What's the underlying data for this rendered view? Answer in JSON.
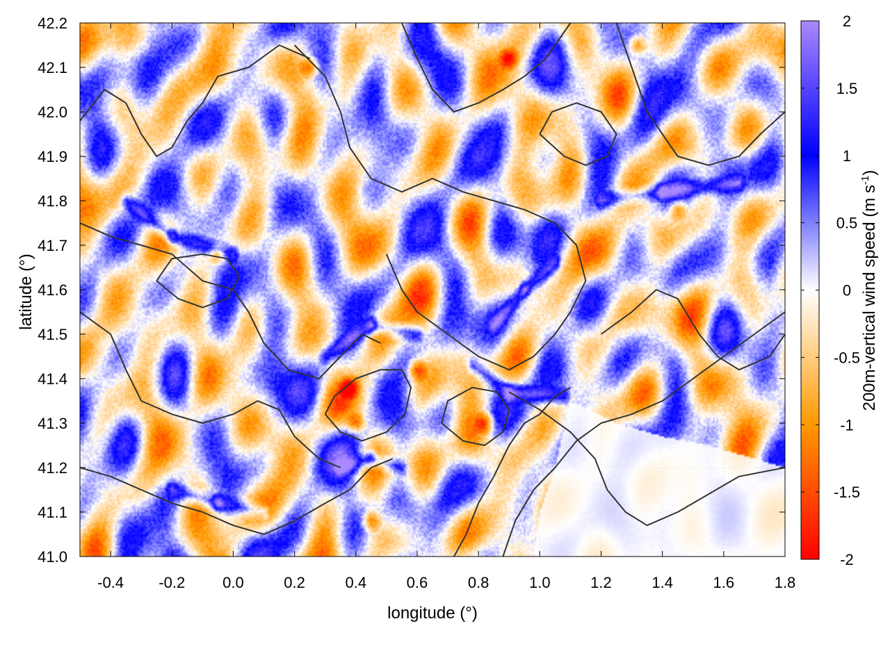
{
  "chart_data": {
    "type": "heatmap",
    "title": "",
    "xlabel": "longitude (°)",
    "ylabel": "latitude (°)",
    "colorbar_label": "200m-vertical wind speed (m s",
    "colorbar_label_sup": "-1",
    "colorbar_label_end": ")",
    "xlim": [
      -0.5,
      1.8
    ],
    "ylim": [
      41.0,
      42.2
    ],
    "xticks": [
      -0.4,
      -0.2,
      0.0,
      0.2,
      0.4,
      0.6,
      0.8,
      1.0,
      1.2,
      1.4,
      1.6,
      1.8
    ],
    "xtick_labels": [
      "-0.4",
      "-0.2",
      "0.0",
      "0.2",
      "0.4",
      "0.6",
      "0.8",
      "1.0",
      "1.2",
      "1.4",
      "1.6",
      "1.8"
    ],
    "yticks": [
      41.0,
      41.1,
      41.2,
      41.3,
      41.4,
      41.5,
      41.6,
      41.7,
      41.8,
      41.9,
      42.0,
      42.1,
      42.2
    ],
    "ytick_labels": [
      "41.0",
      "41.1",
      "41.2",
      "41.3",
      "41.4",
      "41.5",
      "41.6",
      "41.7",
      "41.8",
      "41.9",
      "42.0",
      "42.1",
      "42.2"
    ],
    "colorbar": {
      "range": [
        -2,
        2
      ],
      "ticks": [
        -2,
        -1.5,
        -1,
        -0.5,
        0,
        0.5,
        1,
        1.5,
        2
      ],
      "tick_labels": [
        "-2",
        "-1.5",
        "-1",
        "-0.5",
        "0",
        "0.5",
        "1",
        "1.5",
        "2"
      ],
      "colors": [
        [
          -2.0,
          "#ff0000"
        ],
        [
          -1.0,
          "#ff9900"
        ],
        [
          0.0,
          "#ffffff"
        ],
        [
          1.0,
          "#0000ff"
        ],
        [
          2.0,
          "#aa88ff"
        ]
      ]
    },
    "grid": true,
    "contours": true,
    "contour_color": "#333333",
    "features": {
      "calm_sea_region": [
        [
          1.1,
          41.35
        ],
        [
          1.25,
          41.3
        ],
        [
          1.4,
          41.27
        ],
        [
          1.55,
          41.25
        ],
        [
          1.8,
          41.2
        ],
        [
          1.8,
          41.0
        ],
        [
          0.98,
          41.0
        ],
        [
          1.0,
          41.1
        ],
        [
          1.05,
          41.2
        ]
      ],
      "updraft_bands": [
        [
          [
            -0.35,
            41.8
          ],
          [
            -0.2,
            41.72
          ],
          [
            0.0,
            41.68
          ]
        ],
        [
          [
            0.3,
            41.45
          ],
          [
            0.45,
            41.52
          ],
          [
            0.6,
            41.5
          ]
        ],
        [
          [
            0.85,
            41.52
          ],
          [
            0.95,
            41.6
          ],
          [
            1.05,
            41.66
          ]
        ],
        [
          [
            0.78,
            41.43
          ],
          [
            0.9,
            41.37
          ],
          [
            1.08,
            41.36
          ]
        ],
        [
          [
            1.2,
            41.8
          ],
          [
            1.4,
            41.82
          ],
          [
            1.65,
            41.84
          ]
        ],
        [
          [
            0.35,
            41.2
          ],
          [
            0.45,
            41.22
          ],
          [
            0.55,
            41.2
          ]
        ],
        [
          [
            -0.2,
            41.15
          ],
          [
            -0.05,
            41.12
          ],
          [
            0.1,
            41.1
          ]
        ]
      ],
      "downdraft_spots": [
        [
          0.38,
          41.38
        ],
        [
          0.82,
          41.3
        ],
        [
          0.4,
          41.3
        ],
        [
          0.9,
          42.12
        ],
        [
          1.32,
          42.15
        ],
        [
          0.25,
          42.1
        ],
        [
          0.45,
          41.08
        ],
        [
          -0.05,
          41.68
        ],
        [
          1.45,
          41.78
        ],
        [
          0.6,
          41.42
        ]
      ],
      "contour_lines": [
        [
          [
            -0.5,
            41.98
          ],
          [
            -0.42,
            42.05
          ],
          [
            -0.35,
            42.02
          ],
          [
            -0.3,
            41.95
          ],
          [
            -0.25,
            41.9
          ],
          [
            -0.2,
            41.92
          ],
          [
            -0.15,
            41.98
          ],
          [
            -0.1,
            42.02
          ],
          [
            -0.05,
            42.08
          ],
          [
            0.05,
            42.1
          ],
          [
            0.15,
            42.15
          ],
          [
            0.25,
            42.12
          ]
        ],
        [
          [
            -0.5,
            41.75
          ],
          [
            -0.4,
            41.72
          ],
          [
            -0.3,
            41.7
          ],
          [
            -0.2,
            41.68
          ],
          [
            -0.1,
            41.62
          ],
          [
            0.0,
            41.6
          ],
          [
            0.05,
            41.55
          ],
          [
            0.1,
            41.48
          ],
          [
            0.18,
            41.42
          ],
          [
            0.28,
            41.4
          ],
          [
            0.35,
            41.45
          ],
          [
            0.42,
            41.5
          ],
          [
            0.48,
            41.48
          ]
        ],
        [
          [
            -0.5,
            41.55
          ],
          [
            -0.4,
            41.5
          ],
          [
            -0.35,
            41.42
          ],
          [
            -0.3,
            41.35
          ],
          [
            -0.2,
            41.32
          ],
          [
            -0.1,
            41.3
          ],
          [
            0.0,
            41.32
          ],
          [
            0.08,
            41.35
          ],
          [
            0.15,
            41.33
          ],
          [
            0.2,
            41.27
          ],
          [
            0.28,
            41.22
          ],
          [
            0.35,
            41.2
          ]
        ],
        [
          [
            -0.5,
            41.2
          ],
          [
            -0.4,
            41.18
          ],
          [
            -0.3,
            41.15
          ],
          [
            -0.2,
            41.12
          ],
          [
            -0.1,
            41.1
          ],
          [
            0.0,
            41.07
          ],
          [
            0.1,
            41.05
          ],
          [
            0.2,
            41.08
          ],
          [
            0.3,
            41.12
          ],
          [
            0.38,
            41.15
          ],
          [
            0.45,
            41.2
          ],
          [
            0.52,
            41.22
          ]
        ],
        [
          [
            0.2,
            42.15
          ],
          [
            0.3,
            42.08
          ],
          [
            0.35,
            42.0
          ],
          [
            0.38,
            41.92
          ],
          [
            0.45,
            41.85
          ],
          [
            0.55,
            41.82
          ],
          [
            0.65,
            41.85
          ],
          [
            0.75,
            41.82
          ],
          [
            0.85,
            41.8
          ],
          [
            0.95,
            41.78
          ],
          [
            1.05,
            41.75
          ],
          [
            1.12,
            41.7
          ],
          [
            1.15,
            41.62
          ]
        ],
        [
          [
            1.15,
            41.62
          ],
          [
            1.1,
            41.55
          ],
          [
            1.05,
            41.5
          ],
          [
            0.98,
            41.45
          ],
          [
            0.9,
            41.42
          ],
          [
            0.8,
            41.45
          ],
          [
            0.7,
            41.5
          ],
          [
            0.6,
            41.55
          ],
          [
            0.55,
            41.6
          ],
          [
            0.5,
            41.68
          ]
        ],
        [
          [
            0.9,
            41.37
          ],
          [
            1.0,
            41.33
          ],
          [
            1.1,
            41.28
          ],
          [
            1.18,
            41.22
          ],
          [
            1.22,
            41.15
          ],
          [
            1.28,
            41.1
          ],
          [
            1.35,
            41.07
          ],
          [
            1.45,
            41.1
          ],
          [
            1.55,
            41.14
          ],
          [
            1.65,
            41.18
          ],
          [
            1.8,
            41.2
          ]
        ],
        [
          [
            0.72,
            41.0
          ],
          [
            0.76,
            41.05
          ],
          [
            0.8,
            41.12
          ],
          [
            0.85,
            41.18
          ],
          [
            0.9,
            41.25
          ],
          [
            0.95,
            41.3
          ],
          [
            1.0,
            41.32
          ],
          [
            1.05,
            41.36
          ],
          [
            1.1,
            41.38
          ]
        ],
        [
          [
            0.88,
            41.0
          ],
          [
            0.92,
            41.08
          ],
          [
            0.98,
            41.15
          ],
          [
            1.05,
            41.2
          ],
          [
            1.12,
            41.26
          ],
          [
            1.2,
            41.3
          ],
          [
            1.3,
            41.32
          ],
          [
            1.4,
            41.35
          ],
          [
            1.5,
            41.4
          ],
          [
            1.6,
            41.45
          ],
          [
            1.7,
            41.5
          ],
          [
            1.8,
            41.55
          ]
        ],
        [
          [
            1.25,
            42.2
          ],
          [
            1.3,
            42.1
          ],
          [
            1.35,
            42.0
          ],
          [
            1.4,
            41.95
          ],
          [
            1.45,
            41.9
          ],
          [
            1.55,
            41.88
          ],
          [
            1.65,
            41.9
          ],
          [
            1.72,
            41.95
          ],
          [
            1.8,
            42.0
          ]
        ],
        [
          [
            1.2,
            41.5
          ],
          [
            1.3,
            41.55
          ],
          [
            1.38,
            41.6
          ],
          [
            1.45,
            41.58
          ],
          [
            1.52,
            41.5
          ],
          [
            1.58,
            41.45
          ],
          [
            1.65,
            41.42
          ],
          [
            1.75,
            41.45
          ],
          [
            1.8,
            41.5
          ]
        ],
        [
          [
            0.55,
            42.2
          ],
          [
            0.6,
            42.12
          ],
          [
            0.65,
            42.05
          ],
          [
            0.72,
            42.0
          ],
          [
            0.8,
            42.02
          ],
          [
            0.88,
            42.05
          ],
          [
            0.95,
            42.08
          ],
          [
            1.02,
            42.12
          ],
          [
            1.08,
            42.18
          ],
          [
            1.1,
            42.2
          ]
        ],
        [
          [
            0.3,
            41.32
          ],
          [
            0.35,
            41.28
          ],
          [
            0.42,
            41.26
          ],
          [
            0.5,
            41.28
          ],
          [
            0.56,
            41.32
          ],
          [
            0.58,
            41.38
          ],
          [
            0.55,
            41.42
          ],
          [
            0.48,
            41.42
          ],
          [
            0.4,
            41.4
          ],
          [
            0.33,
            41.36
          ],
          [
            0.3,
            41.32
          ]
        ],
        [
          [
            0.68,
            41.3
          ],
          [
            0.75,
            41.26
          ],
          [
            0.82,
            41.25
          ],
          [
            0.88,
            41.28
          ],
          [
            0.9,
            41.33
          ],
          [
            0.86,
            41.37
          ],
          [
            0.78,
            41.38
          ],
          [
            0.7,
            41.35
          ],
          [
            0.68,
            41.3
          ]
        ],
        [
          [
            -0.25,
            41.62
          ],
          [
            -0.18,
            41.58
          ],
          [
            -0.1,
            41.56
          ],
          [
            -0.02,
            41.58
          ],
          [
            0.02,
            41.63
          ],
          [
            -0.02,
            41.67
          ],
          [
            -0.1,
            41.68
          ],
          [
            -0.2,
            41.67
          ],
          [
            -0.25,
            41.62
          ]
        ],
        [
          [
            1.0,
            41.95
          ],
          [
            1.08,
            41.9
          ],
          [
            1.15,
            41.88
          ],
          [
            1.22,
            41.9
          ],
          [
            1.25,
            41.95
          ],
          [
            1.2,
            42.0
          ],
          [
            1.12,
            42.02
          ],
          [
            1.04,
            42.0
          ],
          [
            1.0,
            41.95
          ]
        ]
      ]
    }
  }
}
